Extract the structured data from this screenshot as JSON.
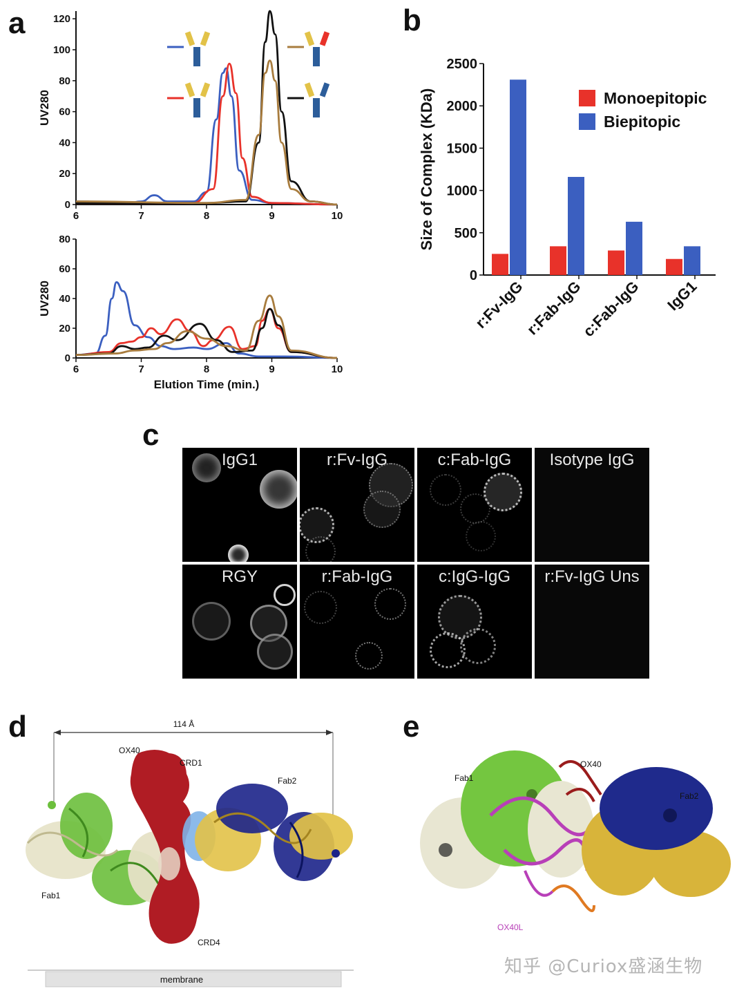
{
  "panels": {
    "a": {
      "letter": "a"
    },
    "b": {
      "letter": "b"
    },
    "c": {
      "letter": "c"
    },
    "d": {
      "letter": "d"
    },
    "e": {
      "letter": "e"
    }
  },
  "chart_data": [
    {
      "panel": "a-top",
      "type": "line",
      "ylabel": "UV280",
      "xlabel": "",
      "xlim": [
        6,
        10
      ],
      "ylim": [
        0,
        125
      ],
      "xticks": [
        6,
        7,
        8,
        9,
        10
      ],
      "yticks": [
        0,
        20,
        40,
        60,
        80,
        100,
        120
      ],
      "series": [
        {
          "color": "#3b5fc0",
          "x": [
            6,
            6.8,
            7.0,
            7.2,
            7.4,
            7.8,
            8.0,
            8.15,
            8.25,
            8.3,
            8.38,
            8.5,
            8.7,
            9.0,
            10
          ],
          "values": [
            2,
            1,
            2,
            6,
            2,
            2,
            8,
            55,
            85,
            88,
            70,
            22,
            3,
            1,
            0
          ]
        },
        {
          "color": "#e8322a",
          "x": [
            6,
            7.0,
            7.8,
            8.1,
            8.25,
            8.35,
            8.45,
            8.55,
            8.7,
            9.0,
            10
          ],
          "values": [
            1,
            1,
            1,
            10,
            70,
            91,
            72,
            30,
            5,
            1,
            0
          ]
        },
        {
          "color": "#111111",
          "x": [
            6,
            8.0,
            8.6,
            8.8,
            8.9,
            8.97,
            9.05,
            9.15,
            9.3,
            9.6,
            10
          ],
          "values": [
            1,
            1,
            2,
            40,
            105,
            125,
            110,
            60,
            15,
            2,
            0
          ]
        },
        {
          "color": "#a87c3e",
          "x": [
            6,
            8.0,
            8.6,
            8.8,
            8.9,
            8.97,
            9.05,
            9.15,
            9.3,
            9.6,
            10
          ],
          "values": [
            2,
            1,
            3,
            45,
            85,
            93,
            80,
            40,
            10,
            2,
            0
          ]
        }
      ]
    },
    {
      "panel": "a-bottom",
      "type": "line",
      "ylabel": "UV280",
      "xlabel": "Elution Time (min.)",
      "xlim": [
        6,
        10
      ],
      "ylim": [
        0,
        80
      ],
      "xticks": [
        6,
        7,
        8,
        9,
        10
      ],
      "yticks": [
        0,
        20,
        40,
        60,
        80
      ],
      "series": [
        {
          "color": "#3b5fc0",
          "x": [
            6,
            6.3,
            6.45,
            6.55,
            6.62,
            6.72,
            6.9,
            7.1,
            7.3,
            7.5,
            7.8,
            8.0,
            8.3,
            8.5,
            8.8,
            9.2,
            10
          ],
          "values": [
            2,
            3,
            15,
            40,
            51,
            45,
            22,
            14,
            8,
            6,
            7,
            6,
            10,
            3,
            1,
            1,
            0
          ]
        },
        {
          "color": "#e8322a",
          "x": [
            6,
            6.5,
            6.7,
            6.85,
            7.0,
            7.15,
            7.3,
            7.55,
            7.75,
            7.95,
            8.1,
            8.35,
            8.55,
            8.75,
            8.85,
            8.97,
            9.1,
            9.3,
            10
          ],
          "values": [
            2,
            4,
            10,
            11,
            14,
            20,
            16,
            26,
            18,
            8,
            12,
            21,
            6,
            8,
            25,
            33,
            20,
            4,
            0
          ]
        },
        {
          "color": "#111111",
          "x": [
            6,
            6.5,
            6.7,
            6.9,
            7.1,
            7.35,
            7.55,
            7.9,
            8.15,
            8.4,
            8.7,
            8.85,
            8.97,
            9.1,
            9.3,
            10
          ],
          "values": [
            2,
            3,
            8,
            6,
            7,
            15,
            12,
            23,
            12,
            4,
            5,
            20,
            33,
            22,
            4,
            0
          ]
        },
        {
          "color": "#a87c3e",
          "x": [
            6,
            6.6,
            6.9,
            7.2,
            7.4,
            7.7,
            8.0,
            8.3,
            8.6,
            8.8,
            8.97,
            9.1,
            9.3,
            10
          ],
          "values": [
            2,
            3,
            5,
            6,
            10,
            18,
            13,
            8,
            5,
            25,
            42,
            28,
            5,
            0
          ]
        }
      ]
    },
    {
      "panel": "b",
      "type": "bar",
      "title": "",
      "xlabel": "",
      "ylabel": "Size of Complex (KDa)",
      "ylim": [
        0,
        2500
      ],
      "yticks": [
        0,
        500,
        1000,
        1500,
        2000,
        2500
      ],
      "categories": [
        "r:Fv-IgG",
        "r:Fab-IgG",
        "c:Fab-IgG",
        "IgG1"
      ],
      "legend_position": "top-right",
      "series": [
        {
          "name": "Monoepitopic",
          "color": "#e8322a",
          "values": [
            250,
            340,
            290,
            190
          ]
        },
        {
          "name": "Biepitopic",
          "color": "#3b5fc0",
          "values": [
            2310,
            1160,
            630,
            340
          ]
        }
      ]
    }
  ],
  "microscopy": {
    "cells": [
      {
        "label": "IgG1"
      },
      {
        "label": "r:Fv-IgG"
      },
      {
        "label": "c:Fab-IgG"
      },
      {
        "label": "Isotype IgG"
      },
      {
        "label": "RGY"
      },
      {
        "label": "r:Fab-IgG"
      },
      {
        "label": "c:IgG-IgG"
      },
      {
        "label": "r:Fv-IgG Uns"
      }
    ]
  },
  "structure_d": {
    "distance": "114 Å",
    "ox40": "OX40",
    "crd1": "CRD1",
    "crd4": "CRD4",
    "fab1": "Fab1",
    "fab2": "Fab2",
    "membrane": "membrane",
    "colors": {
      "ox40": "#b01c24",
      "fab1_heavy": "#6cbf3c",
      "fab1_light": "#e6e2c6",
      "fab2_heavy": "#1c2489",
      "fab2_light": "#e2c248",
      "epitope": "#7fb2e8"
    }
  },
  "structure_e": {
    "fab1": "Fab1",
    "fab2": "Fab2",
    "ox40": "OX40",
    "ox40l": "OX40L",
    "colors": {
      "fab1_heavy": "#74c640",
      "fab1_light": "#e8e6d2",
      "fab2_heavy": "#1f2a8c",
      "fab2_light": "#d8b43a",
      "ox40l": "#b83fb8",
      "ox40": "#9a1c1c"
    }
  },
  "watermark": "知乎 @Curiox盛涵生物"
}
